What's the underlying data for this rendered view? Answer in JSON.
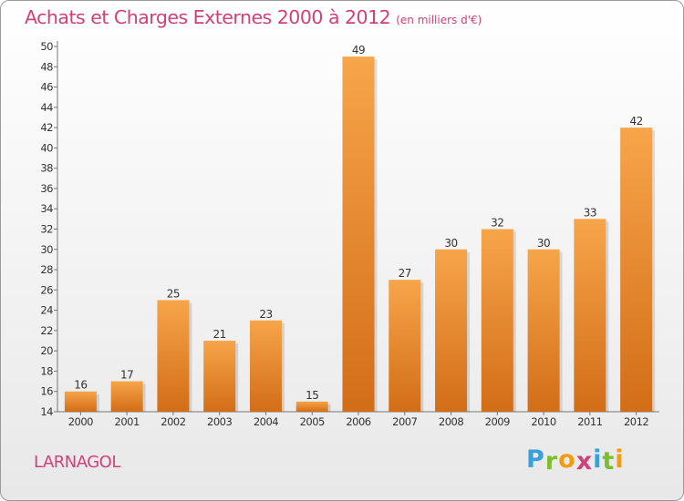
{
  "title": "Achats et Charges Externes 2000 à 2012",
  "subtitle": "(en milliers d'€)",
  "commune": "LARNAGOL",
  "logo": {
    "letters": [
      "P",
      "r",
      "o",
      "x",
      "i",
      "t",
      "i"
    ],
    "colors": [
      "#3aa0d9",
      "#7bbf2e",
      "#f39c12",
      "#d2407a",
      "#3aa0d9",
      "#7bbf2e",
      "#f39c12"
    ]
  },
  "colors": {
    "bar_top": "#f7a54a",
    "bar_bottom": "#d26d17",
    "title": "#d2407a"
  },
  "chart_data": {
    "type": "bar",
    "title": "Achats et Charges Externes 2000 à 2012",
    "subtitle": "(en milliers d'€)",
    "categories": [
      "2000",
      "2001",
      "2002",
      "2003",
      "2004",
      "2005",
      "2006",
      "2007",
      "2008",
      "2009",
      "2010",
      "2011",
      "2012"
    ],
    "values": [
      16,
      17,
      25,
      21,
      23,
      15,
      49,
      27,
      30,
      32,
      30,
      33,
      42
    ],
    "ylim": [
      14,
      50
    ],
    "yticks": [
      14,
      16,
      18,
      20,
      22,
      24,
      26,
      28,
      30,
      32,
      34,
      36,
      38,
      40,
      42,
      44,
      46,
      48,
      50
    ],
    "grid": false,
    "xlabel": "",
    "ylabel": ""
  }
}
